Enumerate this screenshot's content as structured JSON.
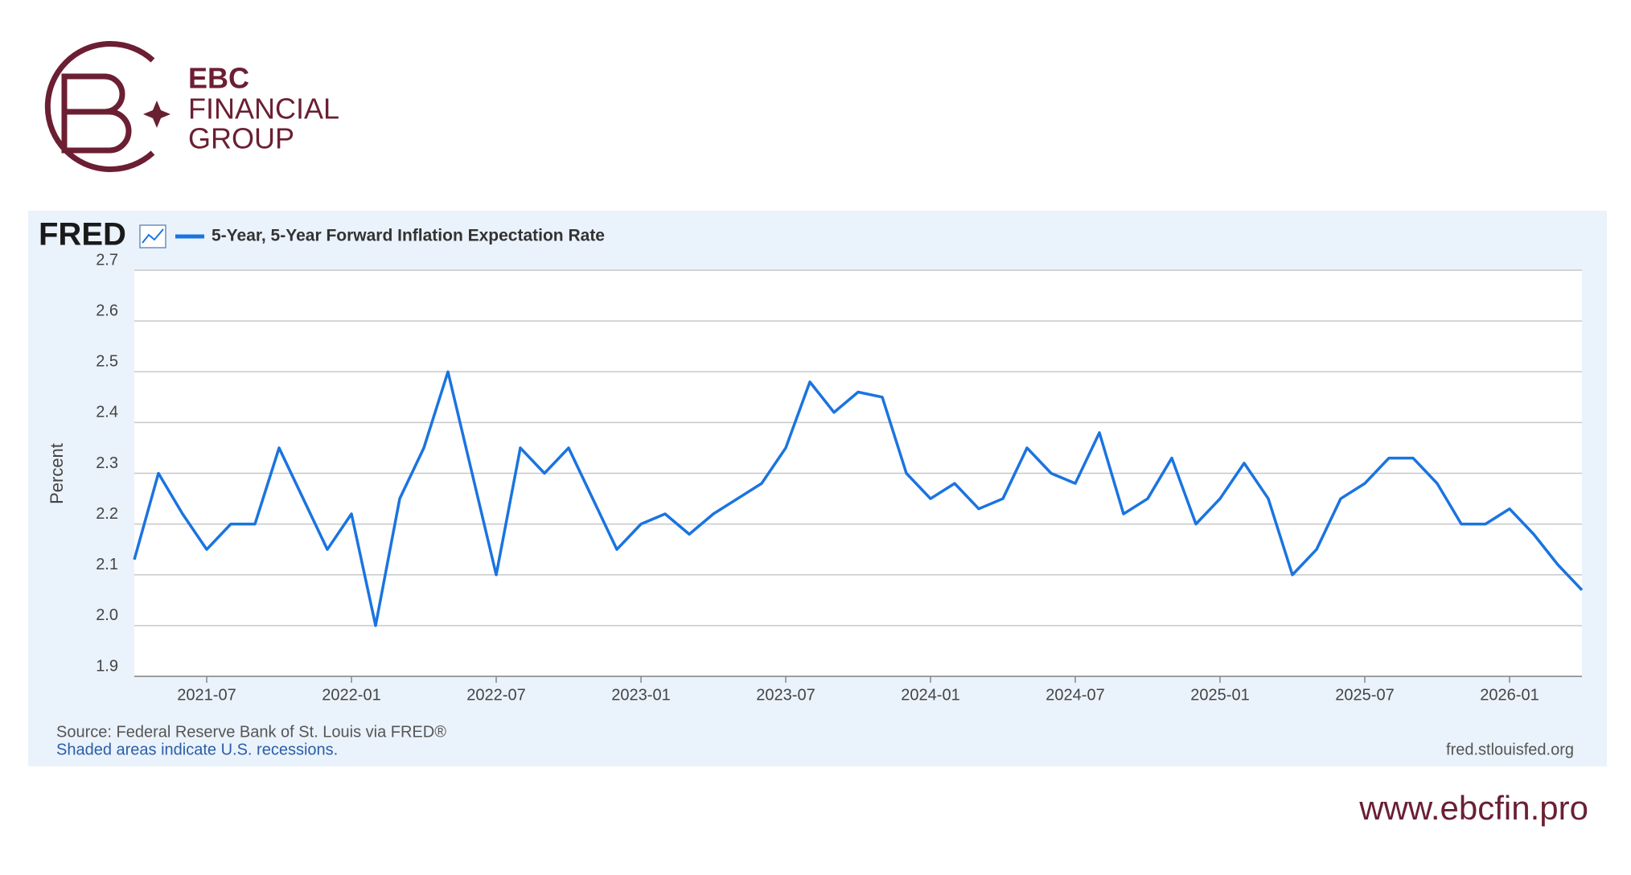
{
  "brand": {
    "name": "EBC",
    "line1": "FINANCIAL",
    "line2": "GROUP",
    "url": "www.ebcfin.pro"
  },
  "chart_data": {
    "type": "line",
    "logo": "FRED",
    "ylabel": "Percent",
    "source": "Source: Federal Reserve Bank of St. Louis via FRED®",
    "note": "Shaded areas indicate U.S. recessions.",
    "site": "fred.stlouisfed.org",
    "x": [
      "2021-04",
      "2021-05",
      "2021-06",
      "2021-07",
      "2021-08",
      "2021-09",
      "2021-10",
      "2021-11",
      "2021-12",
      "2022-01",
      "2022-02",
      "2022-03",
      "2022-04",
      "2022-05",
      "2022-06",
      "2022-07",
      "2022-08",
      "2022-09",
      "2022-10",
      "2022-11",
      "2022-12",
      "2023-01",
      "2023-02",
      "2023-03",
      "2023-04",
      "2023-05",
      "2023-06",
      "2023-07",
      "2023-08",
      "2023-09",
      "2023-10",
      "2023-11",
      "2023-12",
      "2024-01",
      "2024-02",
      "2024-03",
      "2024-04",
      "2024-05",
      "2024-06",
      "2024-07",
      "2024-08",
      "2024-09",
      "2024-10",
      "2024-11",
      "2024-12",
      "2025-01",
      "2025-02",
      "2025-03",
      "2025-04",
      "2025-05",
      "2025-06",
      "2025-07",
      "2025-08",
      "2025-09",
      "2025-10",
      "2025-11",
      "2025-12",
      "2026-01",
      "2026-02",
      "2026-03",
      "2026-04"
    ],
    "series": [
      {
        "name": "5-Year, 5-Year Forward Inflation Expectation Rate",
        "color": "#1a74e0",
        "values": [
          2.13,
          2.3,
          2.22,
          2.15,
          2.2,
          2.2,
          2.35,
          2.25,
          2.15,
          2.22,
          2.0,
          2.25,
          2.35,
          2.5,
          2.3,
          2.1,
          2.35,
          2.3,
          2.35,
          2.25,
          2.15,
          2.2,
          2.22,
          2.18,
          2.22,
          2.25,
          2.28,
          2.35,
          2.48,
          2.42,
          2.46,
          2.45,
          2.3,
          2.25,
          2.28,
          2.23,
          2.25,
          2.35,
          2.3,
          2.28,
          2.38,
          2.22,
          2.25,
          2.33,
          2.2,
          2.25,
          2.32,
          2.25,
          2.1,
          2.15,
          2.25,
          2.28,
          2.33,
          2.33,
          2.28,
          2.2,
          2.2,
          2.23,
          2.18,
          2.12,
          2.07
        ]
      }
    ],
    "xlim": [
      "2021-04",
      "2026-04"
    ],
    "xticks": [
      "2021-07",
      "2022-01",
      "2022-07",
      "2023-01",
      "2023-07",
      "2024-01",
      "2024-07",
      "2025-01",
      "2025-07",
      "2026-01"
    ],
    "ylim": [
      1.9,
      2.7
    ],
    "yticks": [
      1.9,
      {
        "value": 2,
        "label": "2.0"
      },
      2.1,
      2.2,
      2.3,
      2.4,
      2.5,
      2.6,
      2.7
    ],
    "grid": true
  }
}
